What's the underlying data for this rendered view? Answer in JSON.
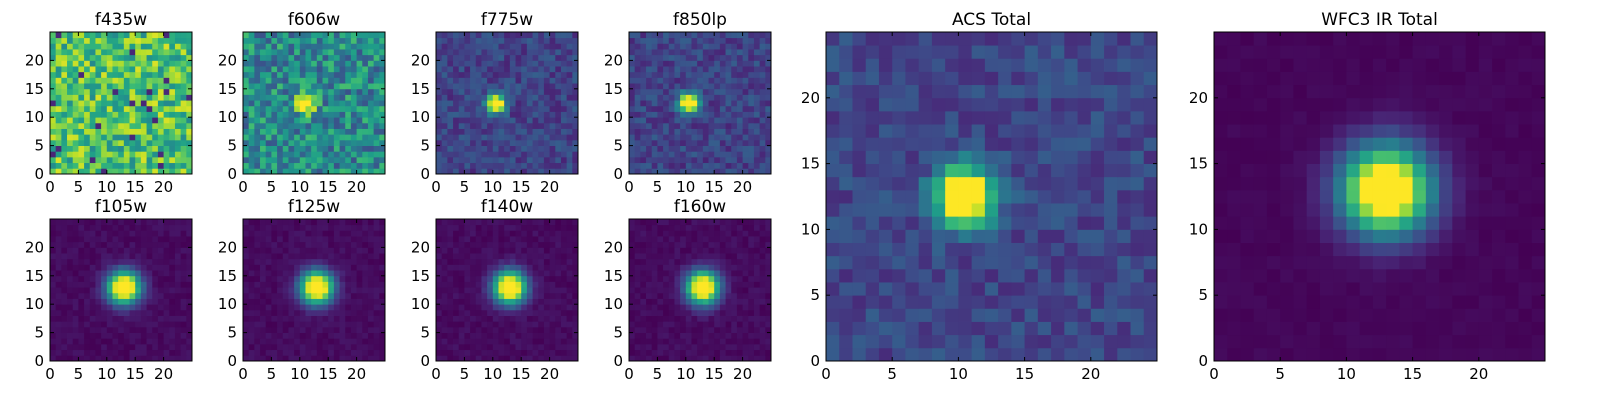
{
  "chart_data": [
    {
      "type": "heatmap",
      "title": "f435w",
      "pattern": "noise_bright",
      "source": [
        12,
        12
      ],
      "xticks": [
        0,
        5,
        10,
        15,
        20
      ],
      "yticks": [
        0,
        5,
        10,
        15,
        20
      ],
      "xlim": [
        0,
        25
      ],
      "ylim": [
        0,
        25
      ],
      "colormap": "viridis",
      "grid": false
    },
    {
      "type": "heatmap",
      "title": "f606w",
      "pattern": "noise_mid",
      "source": [
        10.5,
        12
      ],
      "xticks": [
        0,
        5,
        10,
        15,
        20
      ],
      "yticks": [
        0,
        5,
        10,
        15,
        20
      ],
      "xlim": [
        0,
        25
      ],
      "ylim": [
        0,
        25
      ],
      "colormap": "viridis",
      "grid": false
    },
    {
      "type": "heatmap",
      "title": "f775w",
      "pattern": "point_source",
      "source": [
        10,
        12
      ],
      "xticks": [
        0,
        5,
        10,
        15,
        20
      ],
      "yticks": [
        0,
        5,
        10,
        15,
        20
      ],
      "xlim": [
        0,
        25
      ],
      "ylim": [
        0,
        25
      ],
      "colormap": "viridis",
      "grid": false
    },
    {
      "type": "heatmap",
      "title": "f850lp",
      "pattern": "point_source",
      "source": [
        10,
        12
      ],
      "xticks": [
        0,
        5,
        10,
        15,
        20
      ],
      "yticks": [
        0,
        5,
        10,
        15,
        20
      ],
      "xlim": [
        0,
        25
      ],
      "ylim": [
        0,
        25
      ],
      "colormap": "viridis",
      "grid": false
    },
    {
      "type": "heatmap",
      "title": "f105w",
      "pattern": "smooth_source",
      "source": [
        12.5,
        12.5
      ],
      "xticks": [
        0,
        5,
        10,
        15,
        20
      ],
      "yticks": [
        0,
        5,
        10,
        15,
        20
      ],
      "xlim": [
        0,
        25
      ],
      "ylim": [
        0,
        25
      ],
      "colormap": "viridis",
      "grid": false
    },
    {
      "type": "heatmap",
      "title": "f125w",
      "pattern": "smooth_source",
      "source": [
        12.5,
        12.5
      ],
      "xticks": [
        0,
        5,
        10,
        15,
        20
      ],
      "yticks": [
        0,
        5,
        10,
        15,
        20
      ],
      "xlim": [
        0,
        25
      ],
      "ylim": [
        0,
        25
      ],
      "colormap": "viridis",
      "grid": false
    },
    {
      "type": "heatmap",
      "title": "f140w",
      "pattern": "smooth_source",
      "source": [
        12.5,
        12.5
      ],
      "xticks": [
        0,
        5,
        10,
        15,
        20
      ],
      "yticks": [
        0,
        5,
        10,
        15,
        20
      ],
      "xlim": [
        0,
        25
      ],
      "ylim": [
        0,
        25
      ],
      "colormap": "viridis",
      "grid": false
    },
    {
      "type": "heatmap",
      "title": "f160w",
      "pattern": "smooth_source",
      "source": [
        12.5,
        12.5
      ],
      "xticks": [
        0,
        5,
        10,
        15,
        20
      ],
      "yticks": [
        0,
        5,
        10,
        15,
        20
      ],
      "xlim": [
        0,
        25
      ],
      "ylim": [
        0,
        25
      ],
      "colormap": "viridis",
      "grid": false
    },
    {
      "type": "heatmap",
      "title": "ACS Total",
      "pattern": "point_source_wide",
      "source": [
        10,
        12
      ],
      "xticks": [
        0,
        5,
        10,
        15,
        20
      ],
      "yticks": [
        0,
        5,
        10,
        15,
        20
      ],
      "xlim": [
        0,
        25
      ],
      "ylim": [
        0,
        25
      ],
      "colormap": "viridis",
      "grid": false
    },
    {
      "type": "heatmap",
      "title": "WFC3 IR Total",
      "pattern": "smooth_source_wide",
      "source": [
        12.5,
        12.5
      ],
      "xticks": [
        0,
        5,
        10,
        15,
        20
      ],
      "yticks": [
        0,
        5,
        10,
        15,
        20
      ],
      "xlim": [
        0,
        25
      ],
      "ylim": [
        0,
        25
      ],
      "colormap": "viridis",
      "grid": false
    }
  ]
}
